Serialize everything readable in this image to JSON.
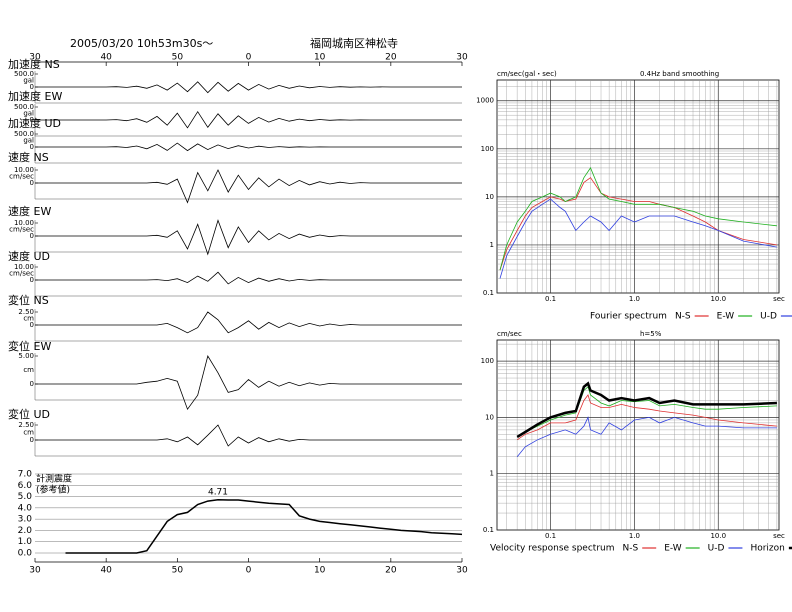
{
  "header": {
    "datetime": "2005/03/20  10h53m30s～",
    "station": "福岡城南区神松寺"
  },
  "chart_data": [
    {
      "type": "waveform",
      "time_labels": [
        "30",
        "40",
        "50",
        "0",
        "10",
        "20",
        "30"
      ],
      "series": [
        {
          "name": "加速度 NS",
          "unit": "gal",
          "yticks": [
            0,
            {
              "value": 500,
              "label": "500.0"
            }
          ],
          "values": [
            0,
            0,
            0,
            0,
            0,
            0,
            0,
            0,
            10,
            -15,
            30,
            -50,
            80,
            -120,
            150,
            -180,
            200,
            -220,
            180,
            -160,
            140,
            -120,
            100,
            -80,
            60,
            -50,
            40,
            -30,
            20,
            -15,
            10,
            -8,
            5,
            -4,
            3,
            0,
            0,
            0,
            0,
            0,
            0,
            0,
            0
          ]
        },
        {
          "name": "加速度 EW",
          "unit": "gal",
          "yticks": [
            0,
            {
              "value": 500,
              "label": "500.0"
            }
          ],
          "values": [
            0,
            0,
            0,
            0,
            0,
            0,
            0,
            0,
            15,
            -25,
            50,
            -90,
            140,
            -200,
            260,
            -300,
            320,
            -280,
            240,
            -200,
            160,
            -130,
            100,
            -80,
            60,
            -45,
            35,
            -25,
            18,
            -12,
            8,
            -5,
            3,
            0,
            0,
            0,
            0,
            0,
            0,
            0,
            0,
            0,
            0
          ]
        },
        {
          "name": "加速度 UD",
          "unit": "gal",
          "yticks": [
            0,
            {
              "value": 500,
              "label": "500.0"
            }
          ],
          "values": [
            0,
            0,
            0,
            0,
            0,
            0,
            0,
            0,
            10,
            -20,
            40,
            -70,
            100,
            -130,
            150,
            -140,
            120,
            -100,
            80,
            -60,
            50,
            -40,
            30,
            -20,
            15,
            -10,
            8,
            -5,
            3,
            0,
            0,
            0,
            0,
            0,
            0,
            0,
            0,
            0,
            0,
            0,
            0,
            0,
            0
          ]
        },
        {
          "name": "速度 NS",
          "unit": "cm/sec",
          "yticks": [
            0,
            {
              "value": 10,
              "label": "10.00"
            }
          ],
          "values": [
            0,
            0,
            0,
            0,
            0,
            0,
            0,
            0,
            0,
            0,
            0,
            0,
            0.5,
            -1,
            3,
            -15,
            8,
            -6,
            10,
            -7,
            6,
            -5,
            4,
            -3,
            3,
            -2,
            2,
            -1.5,
            1,
            -0.8,
            0.6,
            -0.4,
            0.3,
            0,
            0,
            0,
            0,
            0,
            0,
            0,
            0,
            0,
            0
          ]
        },
        {
          "name": "速度 EW",
          "unit": "cm/sec",
          "yticks": [
            0,
            {
              "value": 10,
              "label": "10.00"
            }
          ],
          "values": [
            0,
            0,
            0,
            0,
            0,
            0,
            0,
            0,
            0,
            0,
            0,
            0,
            0.5,
            -1,
            4,
            -10,
            9,
            -14,
            12,
            -9,
            7,
            -5,
            4,
            -3,
            2,
            -2,
            1.5,
            -1,
            0.8,
            -0.5,
            0.3,
            0,
            0,
            0,
            0,
            0,
            0,
            0,
            0,
            0,
            0,
            0,
            0
          ]
        },
        {
          "name": "速度 UD",
          "unit": "cm/sec",
          "yticks": [
            0,
            {
              "value": 10,
              "label": "10.00"
            }
          ],
          "values": [
            0,
            0,
            0,
            0,
            0,
            0,
            0,
            0,
            0,
            0,
            0,
            0,
            0.3,
            -0.5,
            1,
            -2,
            3,
            -1,
            6,
            -3,
            2,
            -2,
            1.5,
            -1,
            1,
            -0.8,
            0.5,
            -0.3,
            0.2,
            0,
            0,
            0,
            0,
            0,
            0,
            0,
            0,
            0,
            0,
            0,
            0,
            0,
            0
          ]
        },
        {
          "name": "変位 NS",
          "unit": "cm",
          "yticks": [
            0,
            {
              "value": 2.5,
              "label": "2.50"
            }
          ],
          "values": [
            0,
            0,
            0,
            0,
            0,
            0,
            0,
            0,
            0,
            0,
            0,
            0,
            0,
            0.3,
            -0.5,
            -1.5,
            -0.5,
            2.5,
            1,
            -1.5,
            -0.5,
            0.8,
            -0.8,
            0.5,
            -0.5,
            0.4,
            -0.3,
            0.3,
            -0.2,
            0.2,
            -0.1,
            0.1,
            0,
            0,
            0,
            0,
            0,
            0,
            0,
            0,
            0,
            0,
            0
          ]
        },
        {
          "name": "変位 EW",
          "unit": "cm",
          "yticks": [
            0,
            {
              "value": 5,
              "label": "5.00"
            }
          ],
          "values": [
            0,
            0,
            0,
            0,
            0,
            0,
            0,
            0,
            0,
            0,
            0,
            0.3,
            0.5,
            1,
            0.5,
            -4.5,
            -2,
            5,
            2,
            -1.5,
            -1,
            0.8,
            -0.6,
            0.5,
            -0.4,
            0.3,
            -0.3,
            0.2,
            -0.2,
            0.1,
            0,
            0,
            0,
            0,
            0,
            0,
            0,
            0,
            0,
            0,
            0,
            0,
            0
          ]
        },
        {
          "name": "変位 UD",
          "unit": "cm",
          "yticks": [
            0,
            {
              "value": 2.5,
              "label": "2.50"
            }
          ],
          "values": [
            0,
            0,
            0,
            0,
            0,
            0,
            0,
            0,
            0,
            0,
            0,
            0,
            0,
            0.2,
            -0.3,
            0.5,
            -0.8,
            0.8,
            2.5,
            -1,
            0.5,
            -0.5,
            0.4,
            -0.3,
            0.2,
            -0.2,
            0.1,
            0,
            0,
            0,
            0,
            0,
            0,
            0,
            0,
            0,
            0,
            0,
            0,
            0,
            0,
            0,
            0
          ]
        }
      ]
    },
    {
      "type": "line",
      "title": [
        "計測震度",
        "(参考値)"
      ],
      "peak_label": "4.71",
      "time_labels": [
        "30",
        "40",
        "50",
        "0",
        "10",
        "20",
        "30"
      ],
      "color": "#000",
      "ylim": [
        0,
        7
      ],
      "yticks": [
        {
          "value": 0,
          "label": "0.0"
        },
        {
          "value": 1,
          "label": "1.0"
        },
        {
          "value": 2,
          "label": "2.0"
        },
        {
          "value": 3,
          "label": "3.0"
        },
        {
          "value": 4,
          "label": "4.0"
        },
        {
          "value": 5,
          "label": "5.0"
        },
        {
          "value": 6,
          "label": "6.0"
        },
        {
          "value": 7,
          "label": "7.0"
        }
      ],
      "grid": true,
      "values": [
        null,
        null,
        null,
        0,
        0,
        0,
        0,
        0,
        0,
        0,
        0,
        0.2,
        1.5,
        2.8,
        3.4,
        3.6,
        4.3,
        4.6,
        4.71,
        4.7,
        4.7,
        4.6,
        4.5,
        4.4,
        4.35,
        4.3,
        3.3,
        3.0,
        2.8,
        2.7,
        2.6,
        2.5,
        2.4,
        2.3,
        2.2,
        2.1,
        2.0,
        1.95,
        1.9,
        1.8,
        1.75,
        1.7,
        1.65
      ]
    },
    {
      "type": "loglog",
      "legend_title": "Fourier spectrum",
      "y_label": "cm/sec(gal・sec)",
      "note": "0.4Hz band smoothing",
      "x_label": "sec",
      "xlim": [
        0.023,
        53
      ],
      "ylim": [
        0.1,
        2700
      ],
      "xticks": [
        0.1,
        {
          "value": 1,
          "label": "1.0"
        },
        {
          "value": 10,
          "label": "10.0"
        }
      ],
      "yticks": [
        0.1,
        1,
        10,
        100,
        1000
      ],
      "x": [
        0.025,
        0.03,
        0.04,
        0.05,
        0.06,
        0.08,
        0.1,
        0.13,
        0.15,
        0.2,
        0.25,
        0.3,
        0.4,
        0.5,
        0.7,
        1,
        1.5,
        2,
        3,
        5,
        7,
        10,
        20,
        50
      ],
      "series": [
        {
          "name": "N-S",
          "color": "#e03030",
          "values": [
            0.3,
            0.8,
            2,
            4,
            6,
            8,
            10,
            9,
            8,
            9,
            20,
            25,
            12,
            10,
            9,
            8,
            8,
            7,
            6,
            4,
            3,
            2,
            1.3,
            1.0
          ]
        },
        {
          "name": "E-W",
          "color": "#20b020",
          "values": [
            0.3,
            1,
            3,
            5,
            8,
            10,
            12,
            10,
            8,
            10,
            25,
            40,
            12,
            9,
            8,
            7,
            7,
            7,
            6,
            5,
            4,
            3.5,
            3,
            2.5
          ]
        },
        {
          "name": "U-D",
          "color": "#3040e0",
          "values": [
            0.2,
            0.6,
            1.5,
            3,
            5,
            7,
            9,
            6,
            5,
            2,
            3,
            4,
            3,
            2,
            4,
            3,
            4,
            4,
            4,
            3,
            2.5,
            2,
            1.2,
            0.9
          ]
        }
      ]
    },
    {
      "type": "loglog",
      "legend_title": "Velocity response spectrum",
      "y_label": "cm/sec",
      "note": "h=5%",
      "x_label": "sec",
      "xlim": [
        0.023,
        53
      ],
      "ylim": [
        0.1,
        237
      ],
      "xticks": [
        0.1,
        {
          "value": 1,
          "label": "1.0"
        },
        {
          "value": 10,
          "label": "10.0"
        }
      ],
      "yticks": [
        0.1,
        1,
        10,
        100
      ],
      "x": [
        0.04,
        0.05,
        0.07,
        0.1,
        0.15,
        0.2,
        0.25,
        0.28,
        0.3,
        0.4,
        0.5,
        0.7,
        1,
        1.5,
        2,
        3,
        5,
        7,
        10,
        20,
        50
      ],
      "series": [
        {
          "name": "N-S",
          "color": "#e03030",
          "values": [
            4,
            5,
            6,
            8,
            8,
            9,
            20,
            25,
            18,
            15,
            15,
            17,
            15,
            14,
            13,
            12,
            11,
            10,
            9,
            8,
            7
          ]
        },
        {
          "name": "E-W",
          "color": "#20b020",
          "values": [
            4.5,
            5.5,
            7,
            9,
            11,
            12,
            30,
            35,
            25,
            18,
            16,
            20,
            19,
            20,
            16,
            17,
            15,
            14,
            14,
            15,
            16
          ]
        },
        {
          "name": "U-D",
          "color": "#3040e0",
          "values": [
            2,
            3,
            4,
            5,
            6,
            5,
            7,
            10,
            6,
            5,
            8,
            6,
            9,
            10,
            8,
            10,
            8,
            7,
            7,
            6.5,
            6.5
          ]
        },
        {
          "name": "Horizon",
          "color": "#000",
          "line_width": 2.5,
          "values": [
            4.5,
            5.5,
            7.5,
            10,
            12,
            13,
            35,
            40,
            30,
            25,
            20,
            22,
            20,
            22,
            18,
            20,
            17,
            17,
            17,
            17,
            18
          ]
        }
      ]
    }
  ]
}
